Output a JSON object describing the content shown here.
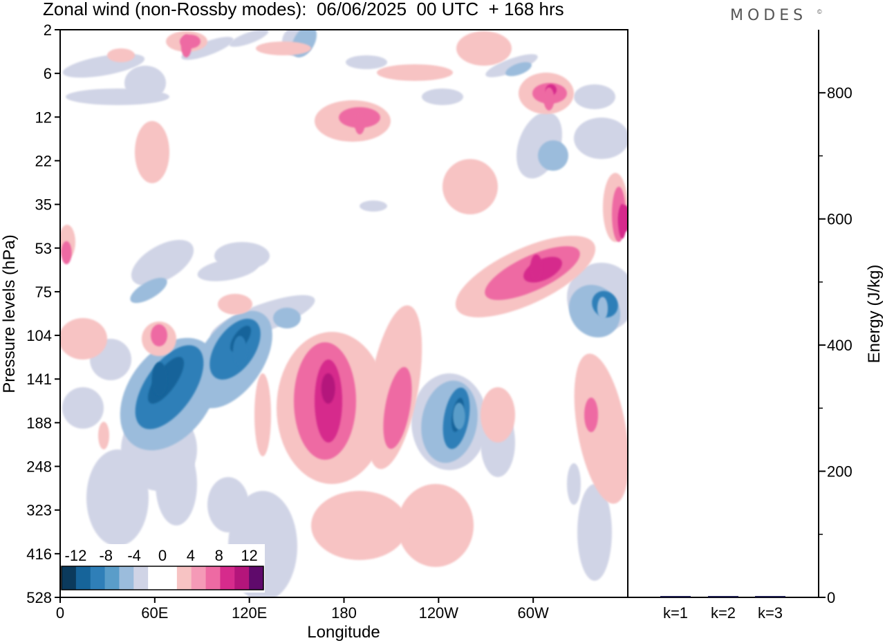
{
  "header": {
    "title": "Zonal wind (non-Rossby modes):  06/06/2025  00 UTC  + 168 hrs",
    "brand": "MODES",
    "brand_mark": "©"
  },
  "chart_data": [
    {
      "type": "heatmap",
      "title": "Zonal wind (non-Rossby modes):  06/06/2025  00 UTC  + 168 hrs",
      "xlabel": "Longitude",
      "ylabel": "Pressure levels (hPa)",
      "x_ticks": [
        "0",
        "60E",
        "120E",
        "180",
        "120W",
        "60W"
      ],
      "x_tick_values": [
        0,
        60,
        120,
        180,
        240,
        300
      ],
      "xlim": [
        0,
        360
      ],
      "y_ticks": [
        "2",
        "6",
        "12",
        "22",
        "35",
        "53",
        "75",
        "104",
        "141",
        "188",
        "248",
        "323",
        "416",
        "528"
      ],
      "colorbar": {
        "labels": [
          "-12",
          "-8",
          "-4",
          "0",
          "4",
          "8",
          "12"
        ],
        "colors": [
          "#0b3a5c",
          "#16649a",
          "#2f7fb8",
          "#5a9dc9",
          "#9bbcdc",
          "#d0d4e6",
          "#ffffff",
          "#ffffff",
          "#f7c3c3",
          "#f59ab7",
          "#ee6aa3",
          "#d62b8c",
          "#b4157b",
          "#5f0a6b"
        ]
      },
      "features": [
        {
          "lon": 63,
          "level": "141",
          "value": -12
        },
        {
          "lon": 114,
          "level": "116",
          "value": -10
        },
        {
          "lon": 253,
          "level": "180",
          "value": -8
        },
        {
          "lon": 344,
          "level": "85",
          "value": -6
        },
        {
          "lon": 170,
          "level": "150",
          "value": 10
        },
        {
          "lon": 302,
          "level": "62",
          "value": 8
        },
        {
          "lon": 362,
          "level": "40",
          "value": 8
        },
        {
          "lon": 310,
          "level": "9",
          "value": 6
        },
        {
          "lon": 190,
          "level": "13",
          "value": 6
        },
        {
          "lon": 80,
          "level": "3",
          "value": 6
        },
        {
          "lon": 4,
          "level": "55",
          "value": 6
        }
      ]
    },
    {
      "type": "bar",
      "categories": [
        "k=1",
        "k=2",
        "k=3"
      ],
      "values": [
        1.5,
        1.2,
        0.8
      ],
      "ylabel": "Energy (J/kg)",
      "ylim": [
        0,
        900
      ],
      "y_ticks": [
        "0",
        "200",
        "400",
        "600",
        "800"
      ]
    }
  ]
}
